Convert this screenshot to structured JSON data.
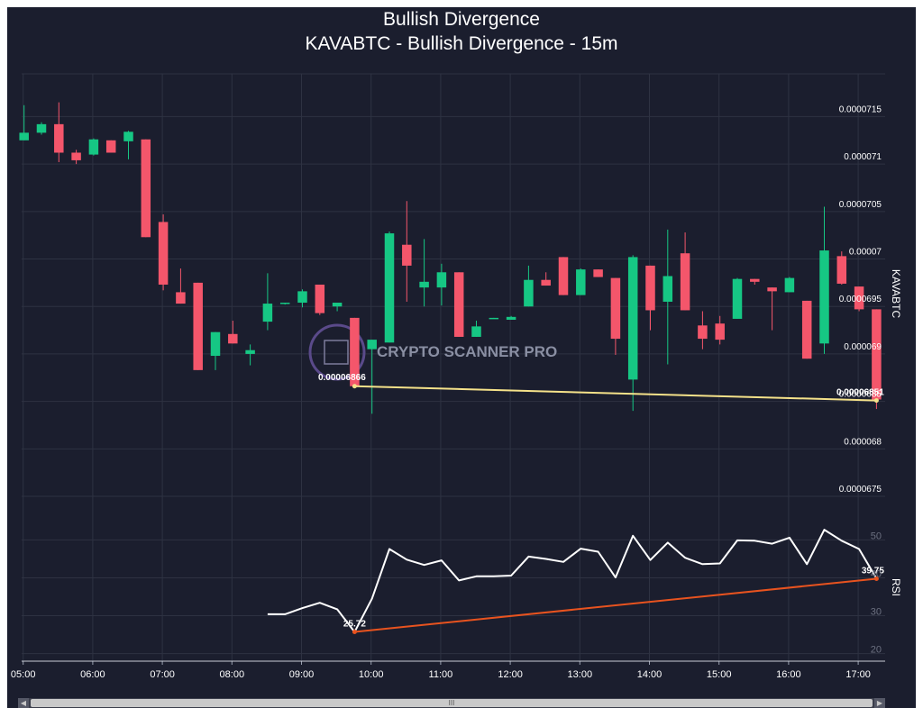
{
  "title": "Bullish Divergence",
  "subtitle": "KAVABTC - Bullish Divergence - 15m",
  "watermark": "CRYPTO SCANNER PRO",
  "colors": {
    "background": "#1b1e2e",
    "grid": "#2e3242",
    "up": "#16c784",
    "down": "#f4566b",
    "price_divergence": "#f5e28a",
    "rsi_line": "#ffffff",
    "rsi_divergence": "#e8531f",
    "text": "#ffffff"
  },
  "chart_data": [
    {
      "type": "candlestick",
      "ylabel": "KAVABTC",
      "ylim": [
        6.732e-05,
        7.195e-05
      ],
      "x_ticks": [
        "05:00",
        "06:00",
        "07:00",
        "08:00",
        "09:00",
        "10:00",
        "11:00",
        "12:00",
        "13:00",
        "14:00",
        "15:00",
        "16:00",
        "17:00"
      ],
      "x_start": "04:55",
      "x_interval_minutes": 15,
      "y_ticks": [
        {
          "value": 6.75e-05,
          "label": "0.0000675"
        },
        {
          "value": 6.8e-05,
          "label": "0.000068"
        },
        {
          "value": 6.85e-05,
          "label": "0.0000685"
        },
        {
          "value": 6.9e-05,
          "label": "0.000069"
        },
        {
          "value": 6.95e-05,
          "label": "0.0000695"
        },
        {
          "value": 7e-05,
          "label": "0.00007"
        },
        {
          "value": 7.05e-05,
          "label": "0.0000705"
        },
        {
          "value": 7.1e-05,
          "label": "0.000071"
        },
        {
          "value": 7.15e-05,
          "label": "0.0000715"
        }
      ],
      "candles": [
        {
          "time": "05:00",
          "open": 7.125e-05,
          "high": 7.162e-05,
          "low": 7.125e-05,
          "close": 7.133e-05
        },
        {
          "time": "05:15",
          "open": 7.133e-05,
          "high": 7.144e-05,
          "low": 7.131e-05,
          "close": 7.142e-05
        },
        {
          "time": "05:30",
          "open": 7.142e-05,
          "high": 7.165e-05,
          "low": 7.102e-05,
          "close": 7.112e-05
        },
        {
          "time": "05:45",
          "open": 7.112e-05,
          "high": 7.115e-05,
          "low": 7.1e-05,
          "close": 7.104e-05
        },
        {
          "time": "06:00",
          "open": 7.11e-05,
          "high": 7.127e-05,
          "low": 7.109e-05,
          "close": 7.126e-05
        },
        {
          "time": "06:15",
          "open": 7.125e-05,
          "high": 7.125e-05,
          "low": 7.112e-05,
          "close": 7.112e-05
        },
        {
          "time": "06:30",
          "open": 7.124e-05,
          "high": 7.135e-05,
          "low": 7.105e-05,
          "close": 7.134e-05
        },
        {
          "time": "06:45",
          "open": 7.126e-05,
          "high": 7.126e-05,
          "low": 7.023e-05,
          "close": 7.023e-05
        },
        {
          "time": "07:00",
          "open": 7.039e-05,
          "high": 7.047e-05,
          "low": 6.967e-05,
          "close": 6.973e-05
        },
        {
          "time": "07:15",
          "open": 6.965e-05,
          "high": 6.99e-05,
          "low": 6.953e-05,
          "close": 6.953e-05
        },
        {
          "time": "07:30",
          "open": 6.975e-05,
          "high": 6.975e-05,
          "low": 6.883e-05,
          "close": 6.883e-05
        },
        {
          "time": "07:45",
          "open": 6.898e-05,
          "high": 6.923e-05,
          "low": 6.883e-05,
          "close": 6.923e-05
        },
        {
          "time": "08:00",
          "open": 6.921e-05,
          "high": 6.935e-05,
          "low": 6.911e-05,
          "close": 6.911e-05
        },
        {
          "time": "08:15",
          "open": 6.9e-05,
          "high": 6.91e-05,
          "low": 6.888e-05,
          "close": 6.904e-05
        },
        {
          "time": "08:30",
          "open": 6.934e-05,
          "high": 6.985e-05,
          "low": 6.925e-05,
          "close": 6.953e-05
        },
        {
          "time": "08:45",
          "open": 6.953e-05,
          "high": 6.954e-05,
          "low": 6.952e-05,
          "close": 6.954e-05
        },
        {
          "time": "09:00",
          "open": 6.954e-05,
          "high": 6.968e-05,
          "low": 6.949e-05,
          "close": 6.966e-05
        },
        {
          "time": "09:15",
          "open": 6.973e-05,
          "high": 6.973e-05,
          "low": 6.941e-05,
          "close": 6.943e-05
        },
        {
          "time": "09:30",
          "open": 6.95e-05,
          "high": 6.954e-05,
          "low": 6.945e-05,
          "close": 6.954e-05
        },
        {
          "time": "09:45",
          "open": 6.938e-05,
          "high": 6.938e-05,
          "low": 6.866e-05,
          "close": 6.866e-05
        },
        {
          "time": "10:00",
          "open": 6.905e-05,
          "high": 6.915e-05,
          "low": 6.837e-05,
          "close": 6.915e-05
        },
        {
          "time": "10:15",
          "open": 6.912e-05,
          "high": 7.029e-05,
          "low": 6.912e-05,
          "close": 7.027e-05
        },
        {
          "time": "10:30",
          "open": 7.015e-05,
          "high": 7.061e-05,
          "low": 6.955e-05,
          "close": 6.993e-05
        },
        {
          "time": "10:45",
          "open": 6.97e-05,
          "high": 7.021e-05,
          "low": 6.95e-05,
          "close": 6.976e-05
        },
        {
          "time": "11:00",
          "open": 6.97e-05,
          "high": 6.995e-05,
          "low": 6.951e-05,
          "close": 6.986e-05
        },
        {
          "time": "11:15",
          "open": 6.986e-05,
          "high": 6.986e-05,
          "low": 6.918e-05,
          "close": 6.918e-05
        },
        {
          "time": "11:30",
          "open": 6.918e-05,
          "high": 6.935e-05,
          "low": 6.918e-05,
          "close": 6.929e-05
        },
        {
          "time": "11:45",
          "open": 6.938e-05,
          "high": 6.938e-05,
          "low": 6.937e-05,
          "close": 6.938e-05
        },
        {
          "time": "12:00",
          "open": 6.936e-05,
          "high": 6.94e-05,
          "low": 6.936e-05,
          "close": 6.939e-05
        },
        {
          "time": "12:15",
          "open": 6.95e-05,
          "high": 6.993e-05,
          "low": 6.95e-05,
          "close": 6.978e-05
        },
        {
          "time": "12:30",
          "open": 6.978e-05,
          "high": 6.986e-05,
          "low": 6.972e-05,
          "close": 6.972e-05
        },
        {
          "time": "12:45",
          "open": 7.002e-05,
          "high": 7.002e-05,
          "low": 6.962e-05,
          "close": 6.962e-05
        },
        {
          "time": "13:00",
          "open": 6.962e-05,
          "high": 6.99e-05,
          "low": 6.962e-05,
          "close": 6.989e-05
        },
        {
          "time": "13:15",
          "open": 6.989e-05,
          "high": 6.989e-05,
          "low": 6.981e-05,
          "close": 6.981e-05
        },
        {
          "time": "13:30",
          "open": 6.98e-05,
          "high": 6.98e-05,
          "low": 6.899e-05,
          "close": 6.916e-05
        },
        {
          "time": "13:45",
          "open": 6.873e-05,
          "high": 7.004e-05,
          "low": 6.84e-05,
          "close": 7.002e-05
        },
        {
          "time": "14:00",
          "open": 6.993e-05,
          "high": 6.993e-05,
          "low": 6.925e-05,
          "close": 6.946e-05
        },
        {
          "time": "14:15",
          "open": 6.955e-05,
          "high": 7.031e-05,
          "low": 6.889e-05,
          "close": 6.982e-05
        },
        {
          "time": "14:30",
          "open": 7.006e-05,
          "high": 7.028e-05,
          "low": 6.946e-05,
          "close": 6.946e-05
        },
        {
          "time": "14:45",
          "open": 6.93e-05,
          "high": 6.945e-05,
          "low": 6.905e-05,
          "close": 6.916e-05
        },
        {
          "time": "15:00",
          "open": 6.932e-05,
          "high": 6.94e-05,
          "low": 6.91e-05,
          "close": 6.915e-05
        },
        {
          "time": "15:15",
          "open": 6.937e-05,
          "high": 6.98e-05,
          "low": 6.937e-05,
          "close": 6.979e-05
        },
        {
          "time": "15:30",
          "open": 6.979e-05,
          "high": 6.979e-05,
          "low": 6.973e-05,
          "close": 6.976e-05
        },
        {
          "time": "15:45",
          "open": 6.97e-05,
          "high": 6.97e-05,
          "low": 6.925e-05,
          "close": 6.966e-05
        },
        {
          "time": "16:00",
          "open": 6.965e-05,
          "high": 6.981e-05,
          "low": 6.965e-05,
          "close": 6.98e-05
        },
        {
          "time": "16:15",
          "open": 6.956e-05,
          "high": 6.956e-05,
          "low": 6.895e-05,
          "close": 6.895e-05
        },
        {
          "time": "16:30",
          "open": 6.911e-05,
          "high": 7.055e-05,
          "low": 6.9e-05,
          "close": 7.009e-05
        },
        {
          "time": "16:45",
          "open": 7.003e-05,
          "high": 7.008e-05,
          "low": 6.973e-05,
          "close": 6.974e-05
        },
        {
          "time": "17:00",
          "open": 6.971e-05,
          "high": 6.971e-05,
          "low": 6.945e-05,
          "close": 6.947e-05
        },
        {
          "time": "17:15",
          "open": 6.947e-05,
          "high": 6.947e-05,
          "low": 6.842e-05,
          "close": 6.852e-05
        }
      ],
      "divergence_line": {
        "from": {
          "time": "09:45",
          "value": 6.866e-05,
          "label": "0.00006866"
        },
        "to": {
          "time": "17:15",
          "value": 6.851e-05,
          "label": "0.00006851"
        }
      }
    },
    {
      "type": "line",
      "ylabel": "RSI",
      "ylim": [
        18,
        57
      ],
      "y_ticks": [
        20,
        30,
        40,
        50
      ],
      "x_start_time": "08:30",
      "values": [
        30.4,
        30.4,
        32.0,
        33.4,
        31.7,
        25.7,
        34.5,
        47.6,
        44.8,
        43.4,
        44.6,
        39.3,
        40.4,
        40.4,
        40.6,
        45.6,
        45.0,
        44.2,
        47.7,
        46.9,
        40.1,
        51.1,
        44.7,
        49.3,
        45.3,
        43.6,
        43.8,
        49.9,
        49.8,
        49.0,
        50.6,
        43.6,
        52.7,
        49.8,
        47.6,
        39.8
      ],
      "divergence_line": {
        "from": {
          "time": "09:45",
          "value": 25.72,
          "label": "25.72"
        },
        "to": {
          "time": "17:15",
          "value": 39.75,
          "label": "39.75"
        }
      }
    }
  ]
}
